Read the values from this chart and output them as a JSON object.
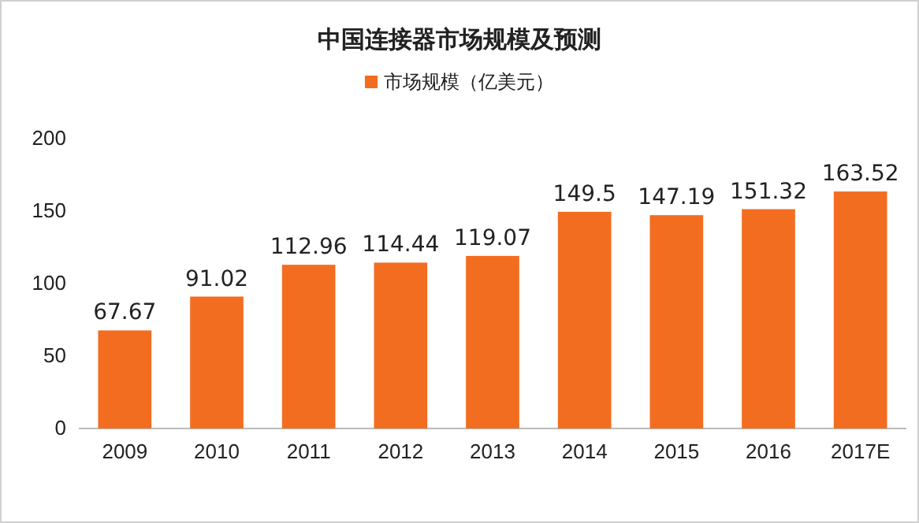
{
  "chart_data": {
    "type": "bar",
    "title": "中国连接器市场规模及预测",
    "categories": [
      "2009",
      "2010",
      "2011",
      "2012",
      "2013",
      "2014",
      "2015",
      "2016",
      "2017E"
    ],
    "series": [
      {
        "name": "市场规模（亿美元）",
        "color": "#f36d21",
        "values": [
          67.67,
          91.02,
          112.96,
          114.44,
          119.07,
          149.5,
          147.19,
          151.32,
          163.52
        ]
      }
    ],
    "ylim": [
      0,
      200
    ],
    "yticks": [
      0,
      50,
      100,
      150,
      200
    ],
    "data_labels": true,
    "legend": "top"
  }
}
